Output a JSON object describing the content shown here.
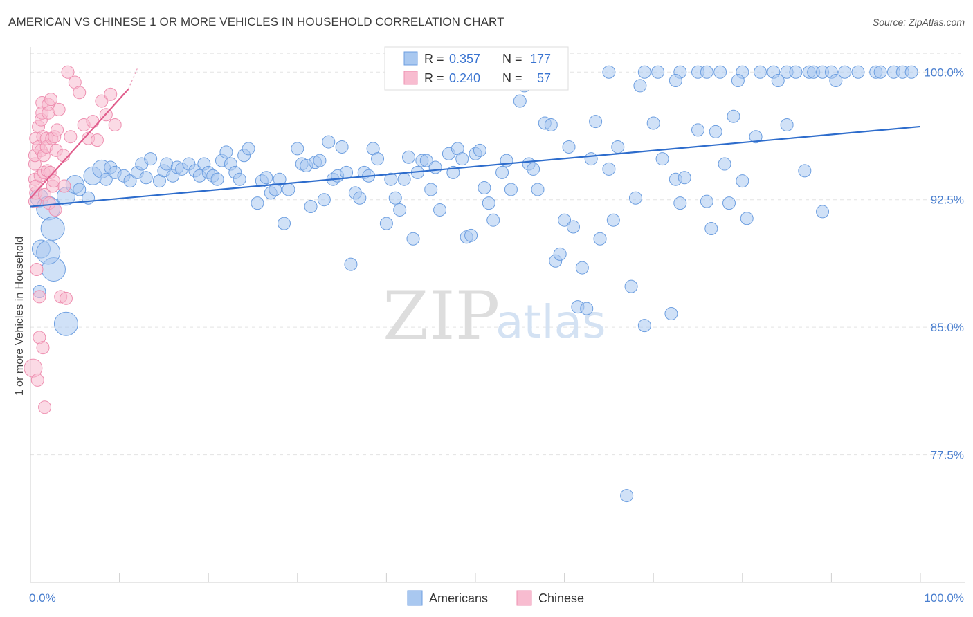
{
  "title": "AMERICAN VS CHINESE 1 OR MORE VEHICLES IN HOUSEHOLD CORRELATION CHART",
  "source": "Source: ZipAtlas.com",
  "watermark": {
    "zip": "ZIP",
    "atlas": "atlas"
  },
  "chart_data": {
    "type": "scatter",
    "ylabel": "1 or more Vehicles in Household",
    "xlim": [
      0,
      100
    ],
    "ylim": [
      70.0,
      101.8
    ],
    "x_tick_labels": [
      "0.0%",
      "100.0%"
    ],
    "y_ticks": [
      77.5,
      85.0,
      92.5,
      100.0
    ],
    "y_tick_labels": [
      "77.5%",
      "85.0%",
      "92.5%",
      "100.0%"
    ],
    "grid": true,
    "legend": {
      "placement": "top-center",
      "r_label": "R =",
      "n_label": "N =",
      "entries": [
        {
          "name": "Americans",
          "r": "0.357",
          "n": "177",
          "color": "#a9c8f0",
          "stroke": "#6c9ee0"
        },
        {
          "name": "Chinese",
          "r": "0.240",
          "n": "57",
          "color": "#f8bcd0",
          "stroke": "#ee8fb0"
        }
      ]
    },
    "series": [
      {
        "name": "Americans",
        "color": "#a9c8f0",
        "stroke": "#6c9ee0",
        "trend": {
          "x": [
            0,
            100
          ],
          "y": [
            92.1,
            96.8
          ],
          "color": "#2d6ccc"
        },
        "points": [
          [
            1,
            92.6,
            2
          ],
          [
            1.2,
            89.6,
            2
          ],
          [
            1,
            87.1,
            1
          ],
          [
            2,
            92,
            3
          ],
          [
            2.5,
            90.8,
            3
          ],
          [
            2.6,
            88.4,
            3
          ],
          [
            2,
            89.4,
            3
          ],
          [
            4,
            85.2,
            3
          ],
          [
            4,
            92.7,
            2
          ],
          [
            5,
            93.4,
            2
          ],
          [
            5.5,
            93.1,
            1
          ],
          [
            6.5,
            92.6,
            1
          ],
          [
            7,
            93.9,
            2
          ],
          [
            8,
            94.3,
            2
          ],
          [
            8.5,
            93.7,
            1
          ],
          [
            9,
            94.4,
            1
          ],
          [
            9.5,
            94.1,
            1
          ],
          [
            10.5,
            93.9,
            1
          ],
          [
            11.2,
            93.6,
            1
          ],
          [
            12,
            94.1,
            1
          ],
          [
            12.5,
            94.6,
            1
          ],
          [
            13,
            93.8,
            1
          ],
          [
            13.5,
            94.9,
            1
          ],
          [
            14.5,
            93.6,
            1
          ],
          [
            15,
            94.2,
            1
          ],
          [
            15.3,
            94.6,
            1
          ],
          [
            16,
            93.9,
            1
          ],
          [
            16.5,
            94.4,
            1
          ],
          [
            17,
            94.3,
            1
          ],
          [
            17.8,
            94.6,
            1
          ],
          [
            18.5,
            94.2,
            1
          ],
          [
            19,
            93.9,
            1
          ],
          [
            19.5,
            94.6,
            1
          ],
          [
            20,
            94.1,
            1
          ],
          [
            20.5,
            93.9,
            1
          ],
          [
            21,
            93.7,
            1
          ],
          [
            21.5,
            94.8,
            1
          ],
          [
            22,
            95.3,
            1
          ],
          [
            22.5,
            94.6,
            1
          ],
          [
            23,
            94.1,
            1
          ],
          [
            23.5,
            93.7,
            1
          ],
          [
            24,
            95.1,
            1
          ],
          [
            24.5,
            95.5,
            1
          ],
          [
            25.5,
            92.3,
            1
          ],
          [
            26,
            93.6,
            1
          ],
          [
            26.5,
            93.8,
            1
          ],
          [
            27,
            92.9,
            1
          ],
          [
            27.5,
            93.1,
            1
          ],
          [
            28,
            93.7,
            1
          ],
          [
            28.5,
            91.1,
            1
          ],
          [
            29,
            93.1,
            1
          ],
          [
            30,
            95.5,
            1
          ],
          [
            30.5,
            94.6,
            1
          ],
          [
            31,
            94.5,
            1
          ],
          [
            31.5,
            92.1,
            1
          ],
          [
            32,
            94.7,
            1
          ],
          [
            32.5,
            94.8,
            1
          ],
          [
            33,
            92.5,
            1
          ],
          [
            33.5,
            95.9,
            1
          ],
          [
            34,
            93.7,
            1
          ],
          [
            34.5,
            93.9,
            1
          ],
          [
            35,
            95.6,
            1
          ],
          [
            35.5,
            94.1,
            1
          ],
          [
            36,
            88.7,
            1
          ],
          [
            36.5,
            92.9,
            1
          ],
          [
            37,
            92.6,
            1
          ],
          [
            37.5,
            94.1,
            1
          ],
          [
            38,
            93.9,
            1
          ],
          [
            38.5,
            95.5,
            1
          ],
          [
            39,
            94.9,
            1
          ],
          [
            40,
            91.1,
            1
          ],
          [
            40.5,
            93.7,
            1
          ],
          [
            41,
            92.6,
            1
          ],
          [
            41.5,
            91.9,
            1
          ],
          [
            42,
            93.7,
            1
          ],
          [
            42.5,
            95,
            1
          ],
          [
            43,
            90.2,
            1
          ],
          [
            43.5,
            94.1,
            1
          ],
          [
            44,
            94.8,
            1
          ],
          [
            44.5,
            94.8,
            1
          ],
          [
            45,
            93.1,
            1
          ],
          [
            45.5,
            94.4,
            1
          ],
          [
            46,
            91.9,
            1
          ],
          [
            47,
            95.2,
            1
          ],
          [
            47.5,
            94.1,
            1
          ],
          [
            48,
            95.5,
            1
          ],
          [
            48.5,
            94.9,
            1
          ],
          [
            49,
            90.3,
            1
          ],
          [
            49.5,
            90.4,
            1
          ],
          [
            50,
            95.2,
            1
          ],
          [
            50.5,
            95.4,
            1
          ],
          [
            51,
            93.2,
            1
          ],
          [
            51.5,
            92.3,
            1
          ],
          [
            52,
            91.3,
            1
          ],
          [
            53,
            94.1,
            1
          ],
          [
            53.5,
            94.8,
            1
          ],
          [
            54,
            93.1,
            1
          ],
          [
            55,
            98.3,
            1
          ],
          [
            55.5,
            99.2,
            1
          ],
          [
            56,
            94.6,
            1
          ],
          [
            56.5,
            94.3,
            1
          ],
          [
            57,
            93.1,
            1
          ],
          [
            57.8,
            97,
            1
          ],
          [
            58.5,
            96.9,
            1
          ],
          [
            59,
            88.9,
            1
          ],
          [
            59.5,
            89.3,
            1
          ],
          [
            60,
            91.3,
            1
          ],
          [
            60.5,
            95.6,
            1
          ],
          [
            61,
            90.9,
            1
          ],
          [
            61.5,
            86.2,
            1
          ],
          [
            62,
            88.5,
            1
          ],
          [
            62.5,
            86.1,
            1
          ],
          [
            63,
            94.9,
            1
          ],
          [
            63.5,
            97.1,
            1
          ],
          [
            64,
            90.2,
            1
          ],
          [
            65,
            94.3,
            1
          ],
          [
            65.5,
            91.3,
            1
          ],
          [
            66,
            95.6,
            1
          ],
          [
            67,
            75.1,
            1
          ],
          [
            67.5,
            87.4,
            1
          ],
          [
            68,
            92.6,
            1
          ],
          [
            68.5,
            99.2,
            1
          ],
          [
            69,
            85.1,
            1
          ],
          [
            70,
            97,
            1
          ],
          [
            71,
            94.9,
            1
          ],
          [
            72,
            85.8,
            1
          ],
          [
            72.5,
            93.7,
            1
          ],
          [
            73,
            92.3,
            1
          ],
          [
            73.5,
            93.8,
            1
          ],
          [
            75,
            96.6,
            1
          ],
          [
            76,
            92.4,
            1
          ],
          [
            76.5,
            90.8,
            1
          ],
          [
            77,
            96.5,
            1
          ],
          [
            78,
            94.6,
            1
          ],
          [
            78.5,
            92.3,
            1
          ],
          [
            79,
            97.4,
            1
          ],
          [
            80,
            93.6,
            1
          ],
          [
            80.5,
            91.4,
            1
          ],
          [
            81.5,
            96.2,
            1
          ],
          [
            85,
            96.9,
            1
          ],
          [
            87,
            94.2,
            1
          ],
          [
            89,
            91.8,
            1
          ],
          [
            65,
            100,
            1
          ],
          [
            69,
            100,
            1
          ],
          [
            70.5,
            100,
            1
          ],
          [
            73,
            100,
            1
          ],
          [
            75,
            100,
            1
          ],
          [
            76,
            100,
            1
          ],
          [
            77.5,
            100,
            1
          ],
          [
            80,
            100,
            1
          ],
          [
            82,
            100,
            1
          ],
          [
            83.5,
            100,
            1
          ],
          [
            85,
            100,
            1
          ],
          [
            86,
            100,
            1
          ],
          [
            87.5,
            100,
            1
          ],
          [
            88,
            100,
            1
          ],
          [
            89,
            100,
            1
          ],
          [
            90,
            100,
            1
          ],
          [
            91.5,
            100,
            1
          ],
          [
            93,
            100,
            1
          ],
          [
            95,
            100,
            1
          ],
          [
            97,
            100,
            1
          ],
          [
            98,
            100,
            1
          ],
          [
            99,
            100,
            1
          ],
          [
            72.5,
            99.5,
            1
          ],
          [
            79.5,
            99.5,
            1
          ],
          [
            84,
            99.5,
            1
          ],
          [
            90.5,
            99.5,
            1
          ],
          [
            95.5,
            100,
            1
          ]
        ]
      },
      {
        "name": "Chinese",
        "color": "#f8bcd0",
        "stroke": "#ee8fb0",
        "trend": {
          "x": [
            0,
            11
          ],
          "y": [
            92.6,
            99.0
          ],
          "dash_x": [
            11,
            12
          ],
          "dash_y": [
            99.0,
            100.2
          ],
          "color": "#e05d8c"
        },
        "points": [
          [
            0.3,
            82.6,
            2
          ],
          [
            0.5,
            92.4,
            1
          ],
          [
            0.5,
            93.7,
            1
          ],
          [
            0.5,
            94.6,
            1
          ],
          [
            0.5,
            95.1,
            1
          ],
          [
            0.6,
            96.1,
            1
          ],
          [
            0.6,
            92.9,
            1
          ],
          [
            0.6,
            93.3,
            1
          ],
          [
            0.7,
            88.4,
            1
          ],
          [
            0.8,
            81.9,
            1
          ],
          [
            0.9,
            96.8,
            1
          ],
          [
            0.9,
            95.6,
            1
          ],
          [
            1,
            86.8,
            1
          ],
          [
            1,
            84.4,
            1
          ],
          [
            1.1,
            93.9,
            1
          ],
          [
            1.2,
            95.4,
            1
          ],
          [
            1.2,
            97.2,
            1
          ],
          [
            1.3,
            98.2,
            1
          ],
          [
            1.3,
            97.6,
            1
          ],
          [
            1.4,
            83.8,
            1
          ],
          [
            1.4,
            96.2,
            1
          ],
          [
            1.5,
            94.1,
            1
          ],
          [
            1.5,
            95.1,
            1
          ],
          [
            1.6,
            92.8,
            1
          ],
          [
            1.6,
            80.3,
            1
          ],
          [
            1.8,
            96.1,
            1
          ],
          [
            1.8,
            95.6,
            1
          ],
          [
            1.9,
            94.2,
            1
          ],
          [
            2,
            98.1,
            1
          ],
          [
            2,
            97.6,
            1
          ],
          [
            2.1,
            92.3,
            1
          ],
          [
            2.2,
            94.1,
            1
          ],
          [
            2.3,
            98.4,
            1
          ],
          [
            2.4,
            96.1,
            1
          ],
          [
            2.5,
            93.3,
            1
          ],
          [
            2.6,
            93.6,
            1
          ],
          [
            2.7,
            96.2,
            1
          ],
          [
            2.9,
            95.4,
            1
          ],
          [
            3,
            96.6,
            1
          ],
          [
            3.2,
            97.8,
            1
          ],
          [
            3.4,
            86.8,
            1
          ],
          [
            3.7,
            95.1,
            1
          ],
          [
            4,
            86.7,
            1
          ],
          [
            4.5,
            96.2,
            1
          ],
          [
            5,
            99.4,
            1
          ],
          [
            5.5,
            98.8,
            1
          ],
          [
            6,
            96.9,
            1
          ],
          [
            6.5,
            96.1,
            1
          ],
          [
            7,
            97.1,
            1
          ],
          [
            7.5,
            96.0,
            1
          ],
          [
            8,
            98.3,
            1
          ],
          [
            8.5,
            97.5,
            1
          ],
          [
            9,
            98.7,
            1
          ],
          [
            9.5,
            96.9,
            1
          ],
          [
            4.2,
            100,
            1
          ],
          [
            3.8,
            93.3,
            1
          ],
          [
            2.8,
            91.9,
            1
          ]
        ]
      }
    ]
  }
}
